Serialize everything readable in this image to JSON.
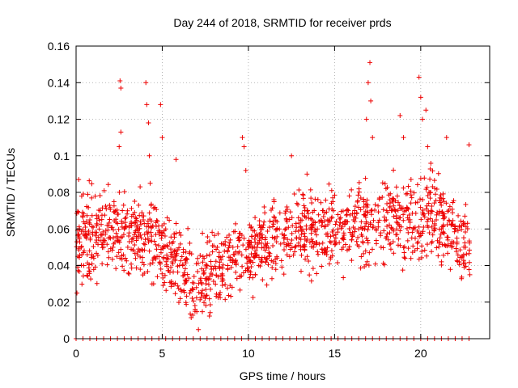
{
  "chart_data": {
    "type": "scatter",
    "title": "Day 244 of 2018, SRMTID for receiver prds",
    "xlabel": "GPS time / hours",
    "ylabel": "SRMTID / TECUs",
    "xlim": [
      0,
      24
    ],
    "ylim": [
      0,
      0.16
    ],
    "xticks": [
      0,
      5,
      10,
      15,
      20
    ],
    "xtick_labels": [
      "0",
      "5",
      "10",
      "15",
      "20"
    ],
    "yticks": [
      0,
      0.02,
      0.04,
      0.06,
      0.08,
      0.1,
      0.12,
      0.14,
      0.16
    ],
    "ytick_labels": [
      "0",
      "0.02",
      "0.04",
      "0.06",
      "0.08",
      "0.1",
      "0.12",
      "0.14",
      "0.16"
    ],
    "grid": true,
    "marker": "plus",
    "color": "#ee0000",
    "series": [
      {
        "name": "SRMTID",
        "points": [
          [
            0.05,
            0.025
          ],
          [
            0.1,
            0.045
          ],
          [
            0.15,
            0.087
          ],
          [
            0.2,
            0.06
          ],
          [
            0.3,
            0.05
          ],
          [
            0.45,
            0.04
          ],
          [
            0.6,
            0.055
          ],
          [
            0.8,
            0.065
          ],
          [
            1.0,
            0.045
          ],
          [
            1.2,
            0.058
          ],
          [
            1.4,
            0.07
          ],
          [
            1.6,
            0.05
          ],
          [
            1.8,
            0.062
          ],
          [
            2.0,
            0.055
          ],
          [
            2.2,
            0.075
          ],
          [
            2.4,
            0.068
          ],
          [
            2.55,
            0.141
          ],
          [
            2.6,
            0.137
          ],
          [
            2.6,
            0.113
          ],
          [
            2.5,
            0.105
          ],
          [
            2.8,
            0.06
          ],
          [
            3.0,
            0.05
          ],
          [
            3.3,
            0.055
          ],
          [
            3.6,
            0.06
          ],
          [
            3.9,
            0.065
          ],
          [
            4.05,
            0.14
          ],
          [
            4.1,
            0.128
          ],
          [
            4.2,
            0.118
          ],
          [
            4.25,
            0.1
          ],
          [
            4.3,
            0.085
          ],
          [
            4.5,
            0.03
          ],
          [
            4.7,
            0.045
          ],
          [
            4.9,
            0.128
          ],
          [
            5.0,
            0.11
          ],
          [
            5.2,
            0.06
          ],
          [
            5.5,
            0.045
          ],
          [
            5.8,
            0.098
          ],
          [
            6.0,
            0.04
          ],
          [
            6.3,
            0.035
          ],
          [
            6.6,
            0.025
          ],
          [
            6.9,
            0.015
          ],
          [
            7.1,
            0.005
          ],
          [
            7.3,
            0.03
          ],
          [
            7.6,
            0.04
          ],
          [
            7.9,
            0.035
          ],
          [
            8.2,
            0.05
          ],
          [
            8.5,
            0.045
          ],
          [
            8.8,
            0.04
          ],
          [
            9.1,
            0.05
          ],
          [
            9.4,
            0.055
          ],
          [
            9.65,
            0.11
          ],
          [
            9.75,
            0.105
          ],
          [
            9.85,
            0.092
          ],
          [
            10.0,
            0.05
          ],
          [
            10.3,
            0.045
          ],
          [
            10.6,
            0.04
          ],
          [
            10.9,
            0.05
          ],
          [
            11.2,
            0.045
          ],
          [
            11.5,
            0.055
          ],
          [
            11.8,
            0.06
          ],
          [
            12.2,
            0.065
          ],
          [
            12.5,
            0.1
          ],
          [
            12.8,
            0.055
          ],
          [
            13.1,
            0.06
          ],
          [
            13.4,
            0.09
          ],
          [
            13.7,
            0.065
          ],
          [
            14.0,
            0.06
          ],
          [
            14.3,
            0.07
          ],
          [
            14.6,
            0.065
          ],
          [
            14.9,
            0.075
          ],
          [
            15.2,
            0.06
          ],
          [
            15.5,
            0.05
          ],
          [
            15.8,
            0.07
          ],
          [
            16.1,
            0.065
          ],
          [
            16.4,
            0.06
          ],
          [
            16.7,
            0.075
          ],
          [
            16.85,
            0.12
          ],
          [
            16.95,
            0.14
          ],
          [
            17.05,
            0.151
          ],
          [
            17.1,
            0.13
          ],
          [
            17.2,
            0.11
          ],
          [
            17.4,
            0.06
          ],
          [
            17.7,
            0.05
          ],
          [
            18.0,
            0.065
          ],
          [
            18.3,
            0.07
          ],
          [
            18.6,
            0.06
          ],
          [
            18.8,
            0.122
          ],
          [
            19.0,
            0.11
          ],
          [
            19.3,
            0.065
          ],
          [
            19.6,
            0.06
          ],
          [
            19.9,
            0.143
          ],
          [
            20.0,
            0.132
          ],
          [
            20.1,
            0.12
          ],
          [
            20.3,
            0.125
          ],
          [
            20.4,
            0.105
          ],
          [
            20.6,
            0.07
          ],
          [
            20.9,
            0.065
          ],
          [
            21.2,
            0.06
          ],
          [
            21.5,
            0.11
          ],
          [
            21.8,
            0.05
          ],
          [
            22.1,
            0.055
          ],
          [
            22.4,
            0.045
          ],
          [
            22.6,
            0.05
          ],
          [
            22.8,
            0.106
          ],
          [
            22.85,
            0.035
          ]
        ],
        "zero_points_x": [
          0,
          0.4,
          0.8,
          1.2,
          1.6,
          2.0,
          2.4,
          2.8,
          3.2,
          3.6,
          4.0,
          4.4,
          4.8,
          5.2,
          5.6,
          6.0,
          6.4,
          6.8,
          7.2,
          7.6,
          8.0,
          8.4,
          8.8,
          9.2,
          9.6,
          10.0,
          10.4,
          10.8,
          11.2,
          11.6,
          12.0,
          12.4,
          12.8,
          13.2,
          13.6,
          14.0,
          14.4,
          14.8,
          15.2,
          15.6,
          16.0,
          16.4,
          16.8,
          17.2,
          17.6,
          18.0,
          18.4,
          18.8,
          19.2,
          19.6,
          20.0,
          20.4,
          20.8,
          21.2,
          21.6,
          22.0,
          22.4,
          22.8
        ]
      }
    ],
    "background_fill": [
      [
        0,
        0.05,
        0.015
      ],
      [
        1,
        0.055,
        0.014
      ],
      [
        2,
        0.06,
        0.015
      ],
      [
        3,
        0.058,
        0.012
      ],
      [
        4,
        0.058,
        0.015
      ],
      [
        5,
        0.05,
        0.013
      ],
      [
        6,
        0.04,
        0.013
      ],
      [
        7,
        0.03,
        0.012
      ],
      [
        8,
        0.038,
        0.012
      ],
      [
        9,
        0.043,
        0.012
      ],
      [
        10,
        0.047,
        0.012
      ],
      [
        11,
        0.052,
        0.012
      ],
      [
        12,
        0.055,
        0.013
      ],
      [
        13,
        0.058,
        0.013
      ],
      [
        14,
        0.06,
        0.014
      ],
      [
        15,
        0.06,
        0.013
      ],
      [
        16,
        0.06,
        0.013
      ],
      [
        17,
        0.065,
        0.015
      ],
      [
        18,
        0.062,
        0.014
      ],
      [
        19,
        0.063,
        0.015
      ],
      [
        20,
        0.068,
        0.015
      ],
      [
        21,
        0.065,
        0.014
      ],
      [
        22,
        0.055,
        0.012
      ],
      [
        23,
        0.05,
        0.011
      ]
    ]
  }
}
